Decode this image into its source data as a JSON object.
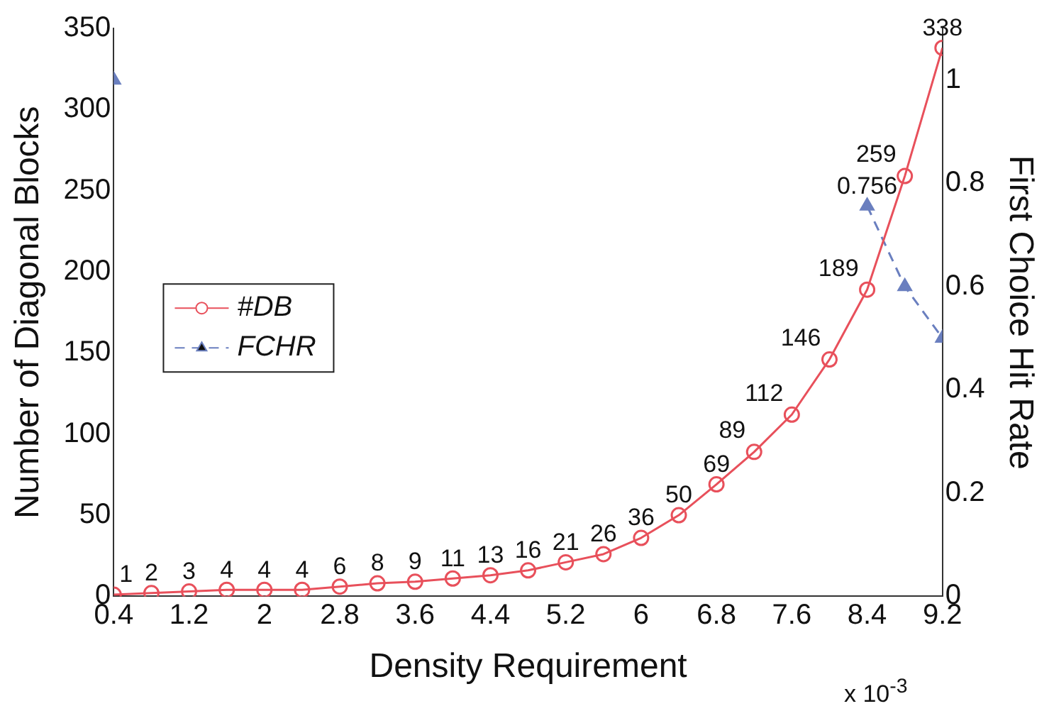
{
  "chart_data": {
    "type": "line",
    "xlabel": "Density Requirement",
    "ylabel": "Number of Diagonal Blocks",
    "y2label": "First Choice Hit Rate",
    "annotations": [
      "x 10$^{-3}$"
    ],
    "x": [
      0.4,
      0.8,
      1.2,
      1.6,
      2.0,
      2.4,
      2.8,
      3.2,
      3.6,
      4.0,
      4.4,
      4.8,
      5.2,
      5.6,
      6.0,
      6.4,
      6.8,
      7.2,
      7.6,
      8.0,
      8.4,
      8.8,
      9.2
    ],
    "series": [
      {
        "name": "#DB",
        "color": "#e8505b",
        "marker": "circle",
        "line_style": "solid",
        "values": [
          1,
          2,
          3,
          4,
          4,
          4,
          6,
          8,
          9,
          11,
          13,
          16,
          21,
          26,
          36,
          50,
          69,
          89,
          112,
          146,
          189,
          259,
          338
        ],
        "value_labels": [
          "1",
          "2",
          "3",
          "4",
          "4",
          "4",
          "6",
          "8",
          "9",
          "11",
          "13",
          "16",
          "21",
          "26",
          "36",
          "50",
          "69",
          "89",
          "112",
          "146",
          "189",
          "259",
          "338"
        ]
      },
      {
        "name": "FCHR",
        "color": "#6a7fbf",
        "marker": "triangle",
        "line_style": "dashed",
        "axis": "y2",
        "values": [
          1.0,
          null,
          null,
          null,
          null,
          null,
          null,
          null,
          null,
          null,
          null,
          null,
          null,
          null,
          null,
          null,
          null,
          null,
          null,
          null,
          0.756,
          0.6,
          0.5
        ],
        "value_labels": [
          null,
          null,
          null,
          null,
          null,
          null,
          null,
          null,
          null,
          null,
          null,
          null,
          null,
          null,
          null,
          null,
          null,
          null,
          null,
          null,
          "0.756",
          null,
          null
        ]
      }
    ],
    "xlim": [
      0.4,
      9.2
    ],
    "xticks": [
      0.4,
      1.2,
      2,
      2.8,
      3.6,
      4.4,
      5.2,
      6,
      6.8,
      7.6,
      8.4,
      9.2
    ],
    "ylim": [
      0,
      350
    ],
    "yticks": [
      0,
      50,
      100,
      150,
      200,
      250,
      300,
      350
    ],
    "y2lim": [
      0,
      1.1
    ],
    "y2ticks": [
      0,
      0.2,
      0.4,
      0.6,
      0.8,
      1
    ],
    "grid": false,
    "legend": "left"
  }
}
